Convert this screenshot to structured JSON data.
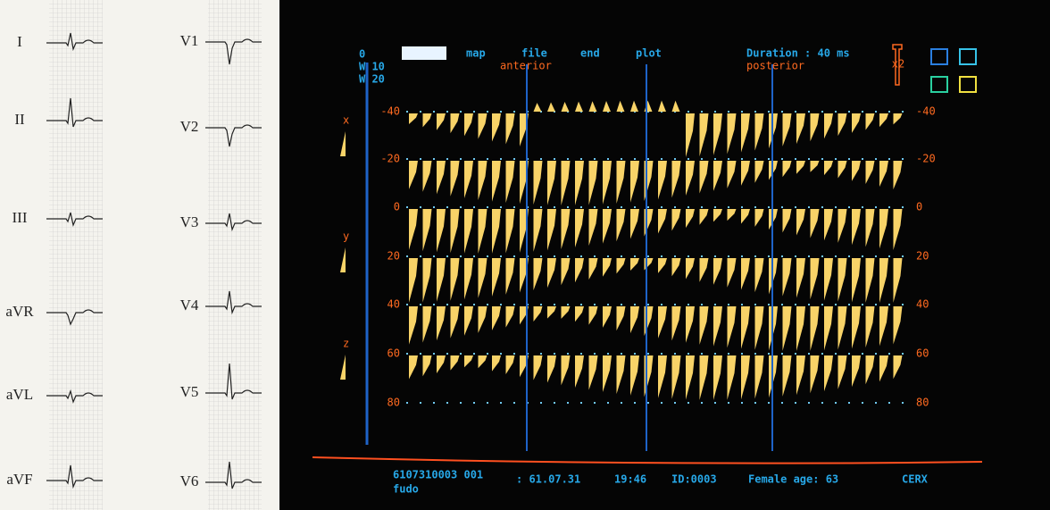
{
  "ecg": {
    "limb_leads": [
      "I",
      "II",
      "III",
      "aVR",
      "aVL",
      "aVF"
    ],
    "chest_leads": [
      "V1",
      "V2",
      "V3",
      "V4",
      "V5",
      "V6"
    ]
  },
  "screen": {
    "menu": [
      "map",
      "file",
      "end",
      "plot"
    ],
    "duration": "Duration : 40 ms",
    "anterior": "anterior",
    "posterior": "posterior",
    "top_marks": [
      "0",
      "W 10",
      "W 20"
    ],
    "side_labels": [
      "x",
      "y",
      "z"
    ],
    "bracket_label": "x2",
    "scale": [
      -40,
      -20,
      0,
      20,
      40,
      60,
      80
    ],
    "footer": {
      "record": "6107310003 001",
      "date": ": 61.07.31",
      "time": "19:46",
      "id": "ID:0003",
      "patient": "Female age: 63",
      "name": "fudo",
      "code": "CERX"
    }
  }
}
